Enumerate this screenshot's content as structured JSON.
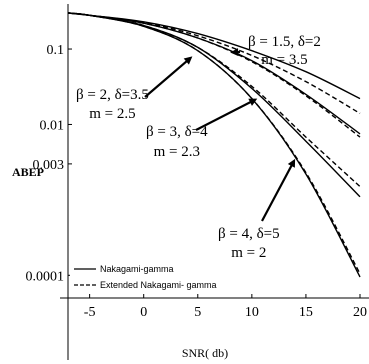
{
  "chart_data": {
    "type": "line",
    "xlabel": "SNR( db)",
    "ylabel": "ABEP",
    "xlim": [
      -7,
      20
    ],
    "ylim": [
      5e-05,
      0.35
    ],
    "yscale": "log",
    "xticks": [
      -5,
      0,
      5,
      10,
      15,
      20
    ],
    "xtick_labels": [
      "-5",
      "0",
      "5",
      "10",
      "15",
      "20"
    ],
    "yticks": [
      0.1,
      0.01,
      0.003,
      0.0001
    ],
    "ytick_labels": [
      "0.1",
      "0.01",
      "0.003",
      "0.0001"
    ],
    "legend": {
      "position": "bottom-left",
      "entries": [
        {
          "label": "Nakagami-gamma",
          "style": "solid"
        },
        {
          "label": "Extended Nakagami- gamma",
          "style": "dashed"
        }
      ]
    },
    "annotations": [
      {
        "line1": "β = 1.5, δ=2",
        "line2": "m = 3.5",
        "target": {
          "x": 8,
          "y": 0.09
        }
      },
      {
        "line1": "β = 2, δ=3.5",
        "line2": "m = 2.5",
        "target": {
          "x": 4.5,
          "y": 0.08
        }
      },
      {
        "line1": "β = 3, δ=4",
        "line2": "m = 2.3",
        "target": {
          "x": 10.5,
          "y": 0.022
        }
      },
      {
        "line1": "β = 4, δ=5",
        "line2": "m = 2",
        "target": {
          "x": 14,
          "y": 0.0035
        }
      }
    ],
    "series": [
      {
        "style": "solid",
        "x": [
          -7,
          -5,
          0,
          5,
          10,
          15,
          20
        ],
        "y": [
          0.3,
          0.28,
          0.23,
          0.16,
          0.095,
          0.05,
          0.022
        ]
      },
      {
        "style": "dashed",
        "x": [
          -7,
          -5,
          0,
          5,
          10,
          15,
          20
        ],
        "y": [
          0.3,
          0.28,
          0.225,
          0.15,
          0.082,
          0.037,
          0.014
        ]
      },
      {
        "style": "solid",
        "x": [
          -7,
          -5,
          0,
          5,
          10,
          15,
          20
        ],
        "y": [
          0.3,
          0.28,
          0.22,
          0.14,
          0.07,
          0.025,
          0.0075
        ]
      },
      {
        "style": "dashed",
        "x": [
          -7,
          -5,
          0,
          5,
          10,
          15,
          20
        ],
        "y": [
          0.3,
          0.28,
          0.22,
          0.14,
          0.068,
          0.024,
          0.0068
        ]
      },
      {
        "style": "solid",
        "x": [
          -7,
          -5,
          0,
          5,
          10,
          15,
          20
        ],
        "y": [
          0.3,
          0.28,
          0.205,
          0.105,
          0.03,
          0.006,
          0.0011
        ]
      },
      {
        "style": "dashed",
        "x": [
          -7,
          -5,
          0,
          5,
          10,
          15,
          20
        ],
        "y": [
          0.3,
          0.28,
          0.205,
          0.105,
          0.032,
          0.0068,
          0.0015
        ]
      },
      {
        "style": "solid",
        "x": [
          -7,
          -5,
          0,
          5,
          10,
          15,
          20
        ],
        "y": [
          0.3,
          0.28,
          0.2,
          0.095,
          0.022,
          0.0022,
          9.5e-05
        ]
      },
      {
        "style": "dashed",
        "x": [
          -7,
          -5,
          0,
          5,
          10,
          15,
          20
        ],
        "y": [
          0.3,
          0.28,
          0.2,
          0.095,
          0.022,
          0.0023,
          0.000105
        ]
      }
    ]
  }
}
